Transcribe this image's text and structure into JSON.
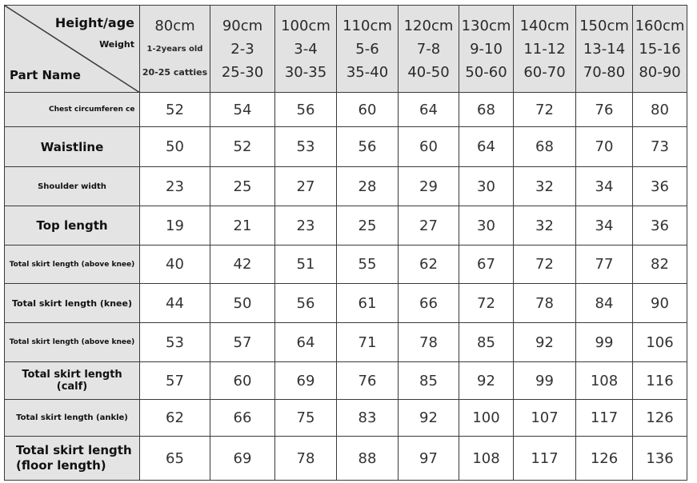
{
  "corner": {
    "height_age": "Height/age",
    "weight": "Weight",
    "part_name": "Part Name"
  },
  "sizes": [
    {
      "height": "80cm",
      "age": "1-2years old",
      "weight": "20-25 catties"
    },
    {
      "height": "90cm",
      "age": "2-3",
      "weight": "25-30"
    },
    {
      "height": "100cm",
      "age": "3-4",
      "weight": "30-35"
    },
    {
      "height": "110cm",
      "age": "5-6",
      "weight": "35-40"
    },
    {
      "height": "120cm",
      "age": "7-8",
      "weight": "40-50"
    },
    {
      "height": "130cm",
      "age": "9-10",
      "weight": "50-60"
    },
    {
      "height": "140cm",
      "age": "11-12",
      "weight": "60-70"
    },
    {
      "height": "150cm",
      "age": "13-14",
      "weight": "70-80"
    },
    {
      "height": "160cm",
      "age": "15-16",
      "weight": "80-90"
    }
  ],
  "rows": [
    {
      "label": "Chest circumferen ce",
      "values": [
        "52",
        "54",
        "56",
        "60",
        "64",
        "68",
        "72",
        "76",
        "80"
      ]
    },
    {
      "label": "Waistline",
      "values": [
        "50",
        "52",
        "53",
        "56",
        "60",
        "64",
        "68",
        "70",
        "73"
      ]
    },
    {
      "label": "Shoulder width",
      "values": [
        "23",
        "25",
        "27",
        "28",
        "29",
        "30",
        "32",
        "34",
        "36"
      ]
    },
    {
      "label": "Top length",
      "values": [
        "19",
        "21",
        "23",
        "25",
        "27",
        "30",
        "32",
        "34",
        "36"
      ]
    },
    {
      "label": "Total skirt length (above knee)",
      "values": [
        "40",
        "42",
        "51",
        "55",
        "62",
        "67",
        "72",
        "77",
        "82"
      ]
    },
    {
      "label": "Total skirt length (knee)",
      "values": [
        "44",
        "50",
        "56",
        "61",
        "66",
        "72",
        "78",
        "84",
        "90"
      ]
    },
    {
      "label": "Total skirt length (above knee)",
      "values": [
        "53",
        "57",
        "64",
        "71",
        "78",
        "85",
        "92",
        "99",
        "106"
      ]
    },
    {
      "label": "Total skirt length (calf)",
      "values": [
        "57",
        "60",
        "69",
        "76",
        "85",
        "92",
        "99",
        "108",
        "116"
      ]
    },
    {
      "label": "Total skirt length (ankle)",
      "values": [
        "62",
        "66",
        "75",
        "83",
        "92",
        "100",
        "107",
        "117",
        "126"
      ]
    },
    {
      "label": "Total skirt length (floor length)",
      "values": [
        "65",
        "69",
        "78",
        "88",
        "97",
        "108",
        "117",
        "126",
        "136"
      ]
    }
  ]
}
